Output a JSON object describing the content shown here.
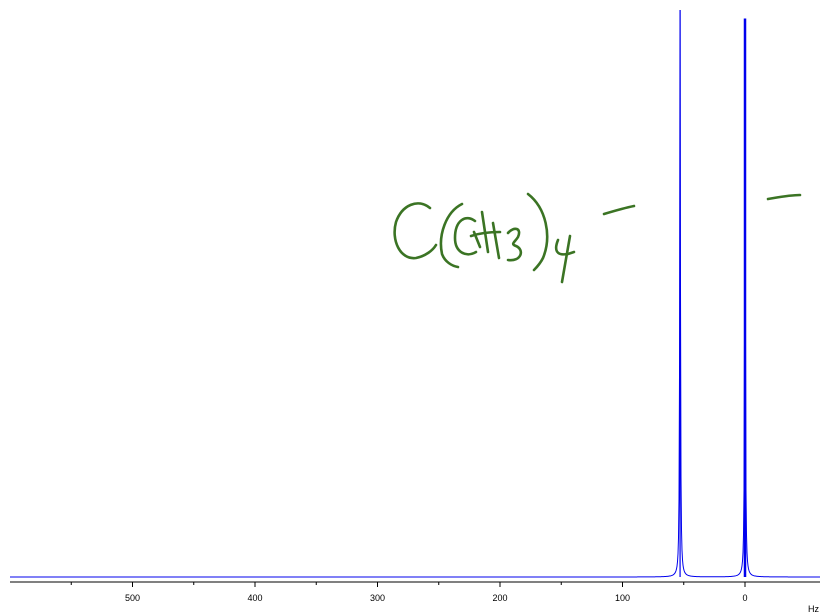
{
  "chart_data": {
    "type": "line",
    "title": "",
    "xlabel": "",
    "ylabel": "",
    "x_unit": "Hz",
    "x_axis_reversed": true,
    "xlim": [
      588,
      -60
    ],
    "ylim": [
      0,
      1
    ],
    "grid": false,
    "ticks": [
      500,
      400,
      300,
      200,
      100,
      0
    ],
    "minor_ticks": [
      550,
      450,
      350,
      250,
      150,
      50
    ],
    "series": [
      {
        "peaks": [
          {
            "x": 53,
            "height": 1.0
          },
          {
            "x": 0,
            "height": 0.985
          }
        ]
      }
    ],
    "line_color": "#0000ee",
    "annotation_color": "#3b7424",
    "annotation_note": "handwritten C(CH3)4 with short dashes pointing at the peaks"
  }
}
